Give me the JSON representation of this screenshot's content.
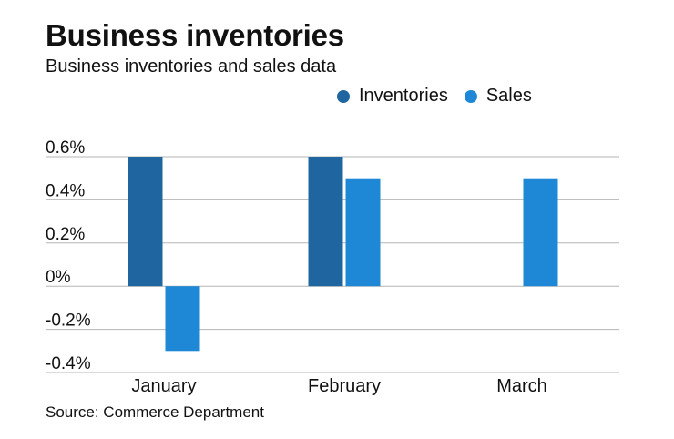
{
  "header": {
    "title": "Business inventories",
    "subtitle": "Business inventories and sales data"
  },
  "legend": [
    {
      "label": "Inventories",
      "color": "#1f65a0"
    },
    {
      "label": "Sales",
      "color": "#1f88d6"
    }
  ],
  "footer": {
    "source": "Source: Commerce Department"
  },
  "chart_data": {
    "type": "bar",
    "categories": [
      "January",
      "February",
      "March"
    ],
    "series": [
      {
        "name": "Inventories",
        "values": [
          0.6,
          0.6,
          null
        ],
        "color": "#1f65a0"
      },
      {
        "name": "Sales",
        "values": [
          -0.3,
          0.5,
          0.5
        ],
        "color": "#1f88d6"
      }
    ],
    "yticks": [
      0.6,
      0.4,
      0.2,
      0,
      -0.2,
      -0.4
    ],
    "ytick_labels": [
      "0.6%",
      "0.4%",
      "0.2%",
      "0%",
      "-0.2%",
      "-0.4%"
    ],
    "ylim": [
      -0.4,
      0.6
    ],
    "grid": true,
    "legend_position": "top-right",
    "title": "Business inventories",
    "subtitle": "Business inventories and sales data",
    "xlabel": "",
    "ylabel": ""
  }
}
